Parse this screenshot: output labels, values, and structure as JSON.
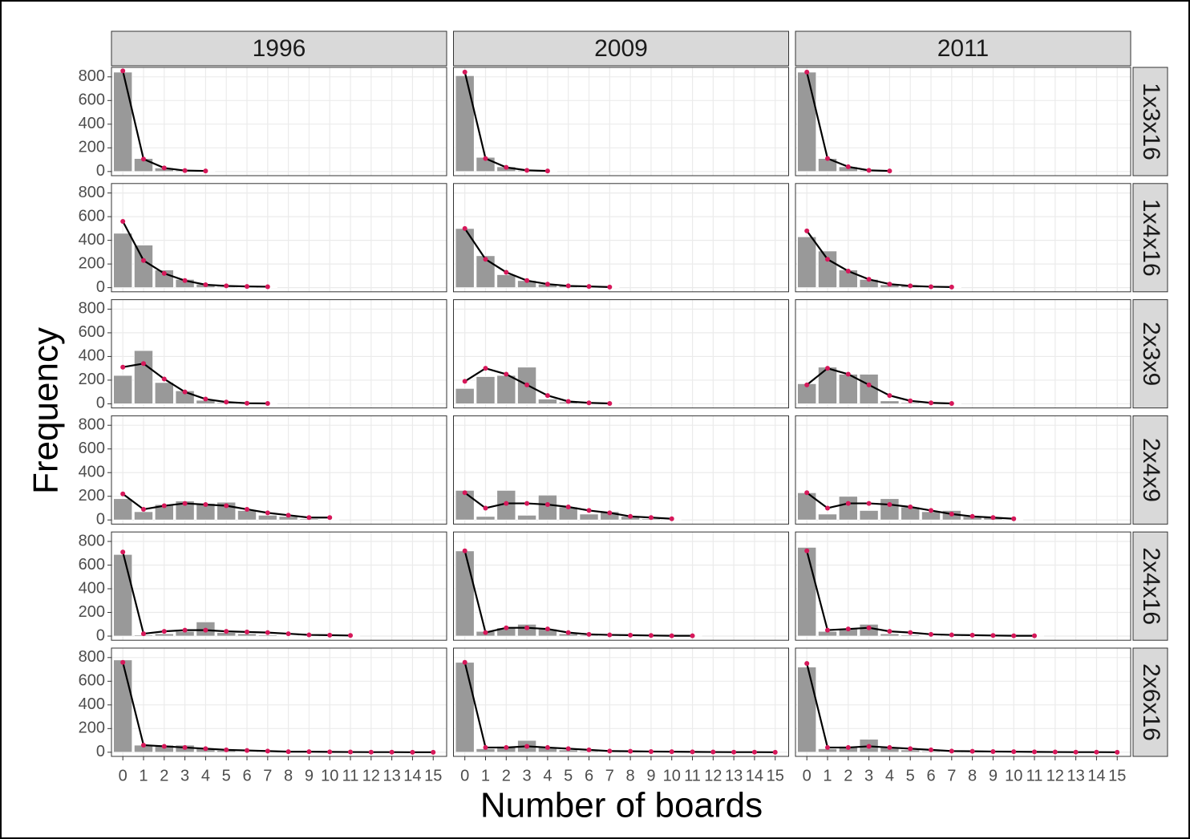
{
  "chart_data": {
    "type": "facet-bar-line",
    "x_label": "Number of boards",
    "y_label": "Frequency",
    "columns": [
      "1996",
      "2009",
      "2011"
    ],
    "rows": [
      "1x3x16",
      "1x4x16",
      "2x3x9",
      "2x4x9",
      "2x4x16",
      "2x6x16"
    ],
    "x": [
      0,
      1,
      2,
      3,
      4,
      5,
      6,
      7,
      8,
      9,
      10,
      11,
      12,
      13,
      14,
      15
    ],
    "xlim": [
      -0.55,
      15.65
    ],
    "xticks": [
      0,
      1,
      2,
      3,
      4,
      5,
      6,
      7,
      8,
      9,
      10,
      11,
      12,
      13,
      14,
      15
    ],
    "ylim": [
      -35,
      880
    ],
    "yticks": [
      0,
      200,
      400,
      600,
      800
    ],
    "grid": true,
    "bar_color": "#999999",
    "line_color": "#000000",
    "point_color": "#d6185a",
    "panels": [
      {
        "bars": [
          840,
          110,
          30,
          10,
          3,
          null,
          null,
          null,
          null,
          null,
          null,
          null,
          null,
          null,
          null,
          null
        ],
        "fit": [
          850,
          105,
          30,
          8,
          5,
          null,
          null,
          null,
          null,
          null,
          null,
          null,
          null,
          null,
          null,
          null
        ]
      },
      {
        "bars": [
          810,
          120,
          40,
          10,
          3,
          null,
          null,
          null,
          null,
          null,
          null,
          null,
          null,
          null,
          null,
          null
        ],
        "fit": [
          840,
          110,
          35,
          10,
          5,
          null,
          null,
          null,
          null,
          null,
          null,
          null,
          null,
          null,
          null,
          null
        ]
      },
      {
        "bars": [
          840,
          110,
          40,
          10,
          3,
          null,
          null,
          null,
          null,
          null,
          null,
          null,
          null,
          null,
          null,
          null
        ],
        "fit": [
          840,
          110,
          40,
          10,
          5,
          null,
          null,
          null,
          null,
          null,
          null,
          null,
          null,
          null,
          null,
          null
        ]
      },
      {
        "bars": [
          460,
          360,
          150,
          70,
          30,
          10,
          5,
          3,
          null,
          null,
          null,
          null,
          null,
          null,
          null,
          null
        ],
        "fit": [
          560,
          230,
          120,
          60,
          25,
          15,
          10,
          8,
          null,
          null,
          null,
          null,
          null,
          null,
          null,
          null
        ]
      },
      {
        "bars": [
          500,
          270,
          110,
          60,
          30,
          15,
          5,
          3,
          null,
          null,
          null,
          null,
          null,
          null,
          null,
          null
        ],
        "fit": [
          500,
          240,
          130,
          60,
          30,
          15,
          10,
          5,
          null,
          null,
          null,
          null,
          null,
          null,
          null,
          null
        ]
      },
      {
        "bars": [
          430,
          310,
          150,
          70,
          25,
          15,
          5,
          3,
          null,
          null,
          null,
          null,
          null,
          null,
          null,
          null
        ],
        "fit": [
          480,
          240,
          140,
          70,
          30,
          15,
          8,
          5,
          null,
          null,
          null,
          null,
          null,
          null,
          null,
          null
        ]
      },
      {
        "bars": [
          240,
          450,
          180,
          110,
          30,
          10,
          5,
          3,
          null,
          null,
          null,
          null,
          null,
          null,
          null,
          null
        ],
        "fit": [
          310,
          340,
          210,
          100,
          40,
          15,
          5,
          3,
          null,
          null,
          null,
          null,
          null,
          null,
          null,
          null
        ]
      },
      {
        "bars": [
          130,
          230,
          240,
          310,
          40,
          15,
          5,
          3,
          null,
          null,
          null,
          null,
          null,
          null,
          null,
          null
        ],
        "fit": [
          190,
          300,
          250,
          160,
          70,
          20,
          8,
          3,
          null,
          null,
          null,
          null,
          null,
          null,
          null,
          null
        ]
      },
      {
        "bars": [
          170,
          310,
          250,
          250,
          25,
          10,
          5,
          3,
          null,
          null,
          null,
          null,
          null,
          null,
          null,
          null
        ],
        "fit": [
          160,
          300,
          250,
          160,
          70,
          25,
          8,
          3,
          null,
          null,
          null,
          null,
          null,
          null,
          null,
          null
        ]
      },
      {
        "bars": [
          180,
          70,
          130,
          160,
          140,
          150,
          80,
          40,
          30,
          10,
          3,
          null,
          null,
          null,
          null,
          null
        ],
        "fit": [
          220,
          90,
          120,
          140,
          130,
          120,
          90,
          60,
          40,
          20,
          20,
          null,
          null,
          null,
          null,
          null
        ]
      },
      {
        "bars": [
          250,
          30,
          250,
          40,
          210,
          110,
          50,
          70,
          30,
          10,
          3,
          null,
          null,
          null,
          null,
          null
        ],
        "fit": [
          230,
          100,
          140,
          140,
          130,
          110,
          80,
          60,
          30,
          20,
          10,
          null,
          null,
          null,
          null,
          null
        ]
      },
      {
        "bars": [
          230,
          50,
          200,
          80,
          180,
          110,
          70,
          80,
          30,
          20,
          3,
          null,
          null,
          null,
          null,
          null
        ],
        "fit": [
          230,
          100,
          140,
          140,
          130,
          110,
          80,
          50,
          30,
          20,
          10,
          null,
          null,
          null,
          null,
          null
        ]
      },
      {
        "bars": [
          690,
          10,
          20,
          40,
          120,
          30,
          20,
          10,
          5,
          3,
          2,
          1,
          null,
          null,
          null,
          null
        ],
        "fit": [
          710,
          20,
          40,
          50,
          50,
          40,
          35,
          30,
          20,
          10,
          8,
          5,
          null,
          null,
          null,
          null
        ]
      },
      {
        "bars": [
          720,
          40,
          70,
          100,
          60,
          20,
          10,
          5,
          3,
          2,
          1,
          1,
          null,
          null,
          null,
          null
        ],
        "fit": [
          720,
          30,
          70,
          70,
          60,
          30,
          15,
          10,
          8,
          5,
          3,
          3,
          null,
          null,
          null,
          null
        ]
      },
      {
        "bars": [
          750,
          40,
          60,
          100,
          20,
          10,
          5,
          3,
          2,
          1,
          1,
          1,
          null,
          null,
          null,
          null
        ],
        "fit": [
          720,
          50,
          60,
          70,
          40,
          30,
          15,
          10,
          8,
          5,
          3,
          3,
          null,
          null,
          null,
          null
        ]
      },
      {
        "bars": [
          780,
          60,
          60,
          60,
          30,
          15,
          5,
          3,
          2,
          1,
          1,
          1,
          1,
          0,
          0,
          0
        ],
        "fit": [
          760,
          60,
          50,
          40,
          30,
          20,
          15,
          10,
          5,
          5,
          3,
          2,
          1,
          1,
          0,
          0
        ]
      },
      {
        "bars": [
          760,
          30,
          50,
          100,
          40,
          20,
          10,
          5,
          3,
          2,
          1,
          1,
          1,
          0,
          0,
          0
        ],
        "fit": [
          760,
          40,
          40,
          50,
          40,
          30,
          20,
          10,
          8,
          6,
          5,
          3,
          2,
          1,
          1,
          0
        ]
      },
      {
        "bars": [
          720,
          30,
          50,
          110,
          40,
          20,
          10,
          5,
          3,
          2,
          1,
          1,
          1,
          0,
          0,
          0
        ],
        "fit": [
          750,
          40,
          40,
          50,
          40,
          30,
          20,
          10,
          8,
          6,
          5,
          3,
          2,
          1,
          1,
          0
        ]
      }
    ]
  }
}
